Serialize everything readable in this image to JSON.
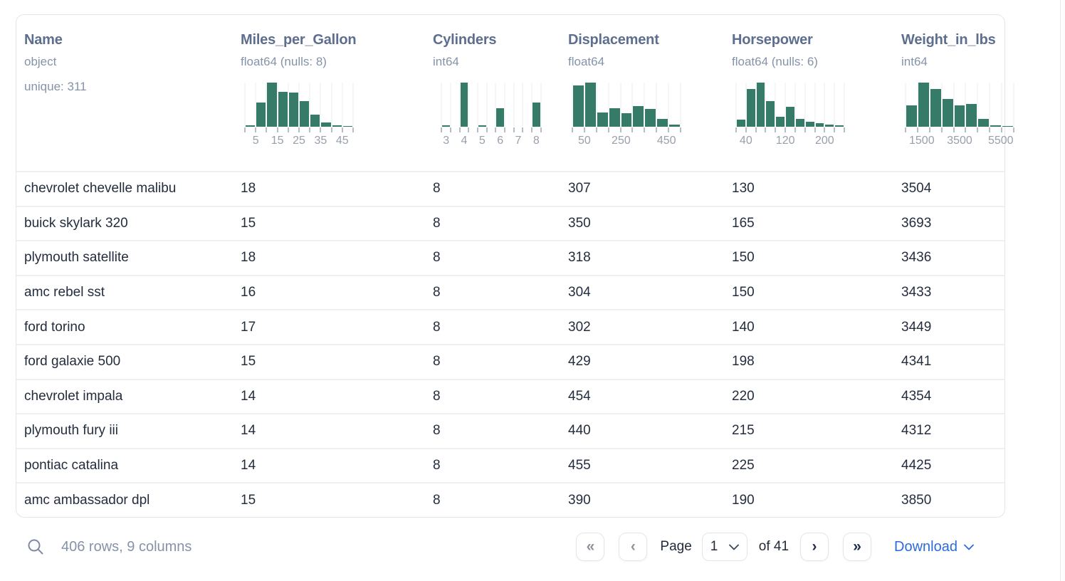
{
  "colors": {
    "histogram_bar": "#367a68",
    "accent_blue": "#2b6bdb"
  },
  "columns": [
    {
      "name": "Name",
      "dtype": "object",
      "note": "unique: 311",
      "histogram": null
    },
    {
      "name": "Miles_per_Gallon",
      "dtype": "float64 (nulls: 8)",
      "note": null,
      "histogram": {
        "mode": "continuous",
        "bar_heights_pct": [
          3,
          55,
          100,
          79,
          78,
          58,
          28,
          10,
          3,
          2
        ],
        "tick_labels": [
          {
            "p": 0.1,
            "text": "5"
          },
          {
            "p": 0.3,
            "text": "15"
          },
          {
            "p": 0.5,
            "text": "25"
          },
          {
            "p": 0.7,
            "text": "35"
          },
          {
            "p": 0.9,
            "text": "45"
          }
        ]
      }
    },
    {
      "name": "Cylinders",
      "dtype": "int64",
      "note": null,
      "histogram": {
        "mode": "categorical",
        "bar_heights_pct": [
          4,
          100,
          3,
          42,
          0,
          55
        ],
        "bin_labels": [
          "3",
          "4",
          "5",
          "6",
          "7",
          "8"
        ]
      }
    },
    {
      "name": "Displacement",
      "dtype": "float64",
      "note": null,
      "histogram": {
        "mode": "continuous",
        "bar_heights_pct": [
          93,
          100,
          32,
          42,
          30,
          46,
          40,
          18,
          5
        ],
        "tick_labels": [
          {
            "p": 0.111,
            "text": "50"
          },
          {
            "p": 0.45,
            "text": "250"
          },
          {
            "p": 0.87,
            "text": "450"
          }
        ]
      }
    },
    {
      "name": "Horsepower",
      "dtype": "float64 (nulls: 6)",
      "note": null,
      "histogram": {
        "mode": "continuous",
        "bar_heights_pct": [
          16,
          86,
          100,
          58,
          22,
          45,
          18,
          11,
          8,
          5,
          3
        ],
        "tick_labels": [
          {
            "p": 0.091,
            "text": "40"
          },
          {
            "p": 0.455,
            "text": "120"
          },
          {
            "p": 0.818,
            "text": "200"
          }
        ]
      }
    },
    {
      "name": "Weight_in_lbs",
      "dtype": "int64",
      "note": null,
      "histogram": {
        "mode": "continuous",
        "bar_heights_pct": [
          48,
          100,
          85,
          63,
          48,
          52,
          18,
          3,
          2
        ],
        "tick_labels": [
          {
            "p": 0.15,
            "text": "1500"
          },
          {
            "p": 0.5,
            "text": "3500"
          },
          {
            "p": 0.88,
            "text": "5500"
          }
        ]
      }
    }
  ],
  "rows": [
    [
      "chevrolet chevelle malibu",
      "18",
      "8",
      "307",
      "130",
      "3504"
    ],
    [
      "buick skylark 320",
      "15",
      "8",
      "350",
      "165",
      "3693"
    ],
    [
      "plymouth satellite",
      "18",
      "8",
      "318",
      "150",
      "3436"
    ],
    [
      "amc rebel sst",
      "16",
      "8",
      "304",
      "150",
      "3433"
    ],
    [
      "ford torino",
      "17",
      "8",
      "302",
      "140",
      "3449"
    ],
    [
      "ford galaxie 500",
      "15",
      "8",
      "429",
      "198",
      "4341"
    ],
    [
      "chevrolet impala",
      "14",
      "8",
      "454",
      "220",
      "4354"
    ],
    [
      "plymouth fury iii",
      "14",
      "8",
      "440",
      "215",
      "4312"
    ],
    [
      "pontiac catalina",
      "14",
      "8",
      "455",
      "225",
      "4425"
    ],
    [
      "amc ambassador dpl",
      "15",
      "8",
      "390",
      "190",
      "3850"
    ]
  ],
  "footer": {
    "summary": "406 rows, 9 columns",
    "first_icon": "«",
    "prev_icon": "‹",
    "next_icon": "›",
    "last_icon": "»",
    "page_label": "Page",
    "page_value": "1",
    "of_label": "of 41",
    "download_label": "Download"
  }
}
